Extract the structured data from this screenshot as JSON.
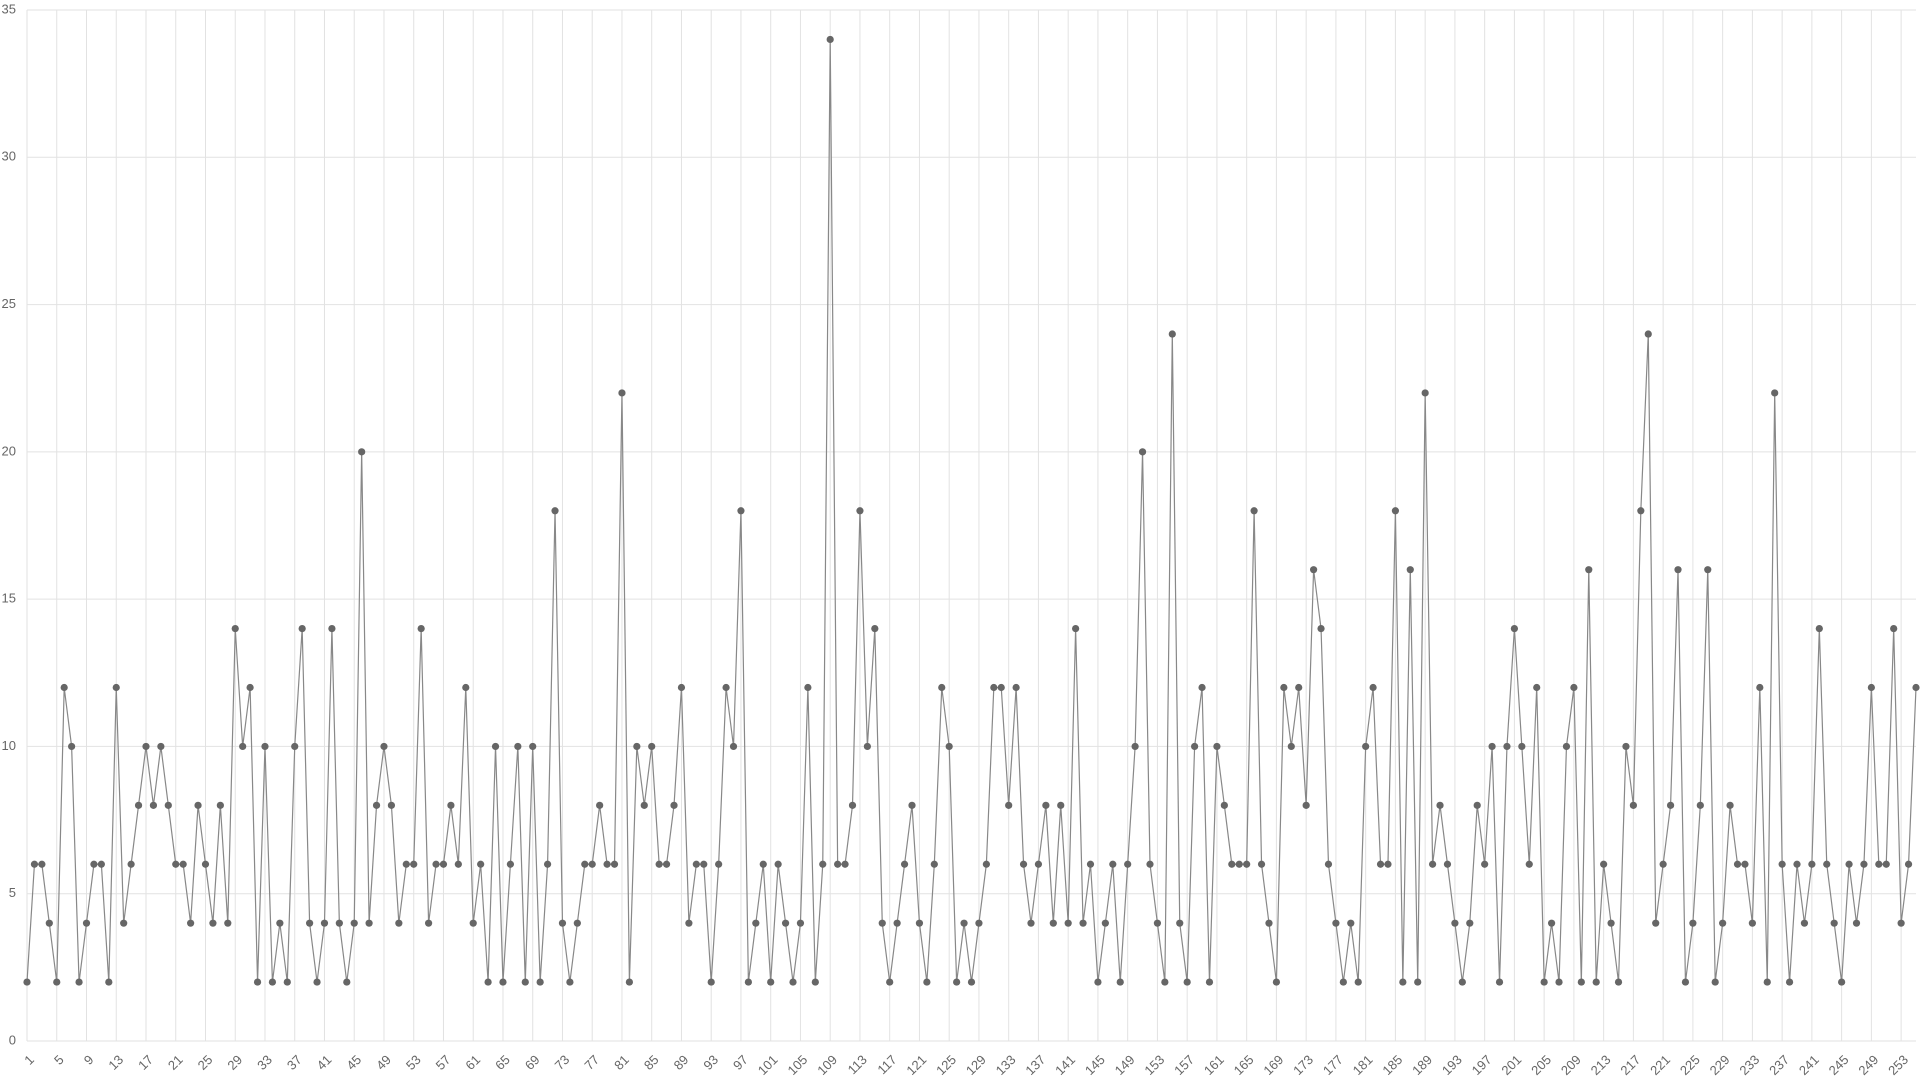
{
  "chart_data": {
    "type": "line",
    "categories": [
      "1",
      null,
      null,
      null,
      "5",
      null,
      null,
      null,
      "9",
      null,
      null,
      null,
      "13",
      null,
      null,
      null,
      "17",
      null,
      null,
      null,
      "21",
      null,
      null,
      null,
      "25",
      null,
      null,
      null,
      "29",
      null,
      null,
      null,
      "33",
      null,
      null,
      null,
      "37",
      null,
      null,
      null,
      "41",
      null,
      null,
      null,
      "45",
      null,
      null,
      null,
      "49",
      null,
      null,
      null,
      "53",
      null,
      null,
      null,
      "57",
      null,
      null,
      null,
      "61",
      null,
      null,
      null,
      "65",
      null,
      null,
      null,
      "69",
      null,
      null,
      null,
      "73",
      null,
      null,
      null,
      "77",
      null,
      null,
      null,
      "81",
      null,
      null,
      null,
      "85",
      null,
      null,
      null,
      "89",
      null,
      null,
      null,
      "93",
      null,
      null,
      null,
      "97",
      null,
      null,
      null,
      "101",
      null,
      null,
      null,
      "105",
      null,
      null,
      null,
      "109",
      null,
      null,
      null,
      "113",
      null,
      null,
      null,
      "117",
      null,
      null,
      null,
      "121",
      null,
      null,
      null,
      "125",
      null,
      null,
      null,
      "129",
      null,
      null,
      null,
      "133",
      null,
      null,
      null,
      "137",
      null,
      null,
      null,
      "141",
      null,
      null,
      null,
      "145",
      null,
      null,
      null,
      "149",
      null,
      null,
      null,
      "153",
      null,
      null,
      null,
      "157",
      null,
      null,
      null,
      "161",
      null,
      null,
      null,
      "165",
      null,
      null,
      null,
      "169",
      null,
      null,
      null,
      "173",
      null,
      null,
      null,
      "177",
      null,
      null,
      null,
      "181",
      null,
      null,
      null,
      "185",
      null,
      null,
      null,
      "189",
      null,
      null,
      null,
      "193",
      null,
      null,
      null,
      "197",
      null,
      null,
      null,
      "201",
      null,
      null,
      null,
      "205",
      null,
      null,
      null,
      "209",
      null,
      null,
      null,
      "213",
      null,
      null,
      null,
      "217",
      null,
      null,
      null,
      "221",
      null,
      null,
      null,
      "225",
      null,
      null,
      null,
      "229",
      null,
      null,
      null,
      "233",
      null,
      null,
      null,
      "237",
      null,
      null,
      null,
      "241",
      null,
      null,
      null,
      "245",
      null,
      null,
      null,
      "249",
      null,
      null,
      null,
      "253",
      null,
      null
    ],
    "values": [
      2,
      6,
      6,
      4,
      2,
      12,
      10,
      2,
      4,
      6,
      6,
      2,
      12,
      4,
      6,
      8,
      10,
      8,
      10,
      8,
      6,
      6,
      4,
      8,
      6,
      4,
      8,
      4,
      14,
      10,
      12,
      2,
      10,
      2,
      4,
      2,
      10,
      14,
      4,
      2,
      4,
      14,
      4,
      2,
      4,
      20,
      4,
      8,
      10,
      8,
      4,
      6,
      6,
      14,
      4,
      6,
      6,
      8,
      6,
      12,
      4,
      6,
      2,
      10,
      2,
      6,
      10,
      2,
      10,
      2,
      6,
      18,
      4,
      2,
      4,
      6,
      6,
      8,
      6,
      6,
      22,
      2,
      10,
      8,
      10,
      6,
      6,
      8,
      12,
      4,
      6,
      6,
      2,
      6,
      12,
      10,
      18,
      2,
      4,
      6,
      2,
      6,
      4,
      2,
      4,
      12,
      2,
      6,
      34,
      6,
      6,
      8,
      18,
      10,
      14,
      4,
      2,
      4,
      6,
      8,
      4,
      2,
      6,
      12,
      10,
      2,
      4,
      2,
      4,
      6,
      12,
      12,
      8,
      12,
      6,
      4,
      6,
      8,
      4,
      8,
      4,
      14,
      4,
      6,
      2,
      4,
      6,
      2,
      6,
      10,
      20,
      6,
      4,
      2,
      24,
      4,
      2,
      10,
      12,
      2,
      10,
      8,
      6,
      6,
      6,
      18,
      6,
      4,
      2,
      12,
      10,
      12,
      8,
      16,
      14,
      6,
      4,
      2,
      4,
      2,
      10,
      12,
      6,
      6,
      18,
      2,
      16,
      2,
      22,
      6,
      8,
      6,
      4,
      2,
      4,
      8,
      6,
      10,
      2,
      10,
      14,
      10,
      6,
      12,
      2,
      4,
      2,
      10,
      12,
      2,
      16,
      2,
      6,
      4,
      2,
      10,
      8,
      18,
      24,
      4,
      6,
      8,
      16,
      2,
      4,
      8,
      16,
      2,
      4,
      8,
      6,
      6,
      4,
      12,
      2,
      22,
      6,
      2,
      6,
      4,
      6,
      14,
      6,
      4,
      2,
      6,
      4,
      6,
      12,
      6,
      6,
      14,
      4,
      6,
      12
    ],
    "color": "#666666",
    "ylim": [
      0,
      35
    ],
    "yticks": [
      0,
      5,
      10,
      15,
      20,
      25,
      30,
      35
    ],
    "grid": true
  }
}
